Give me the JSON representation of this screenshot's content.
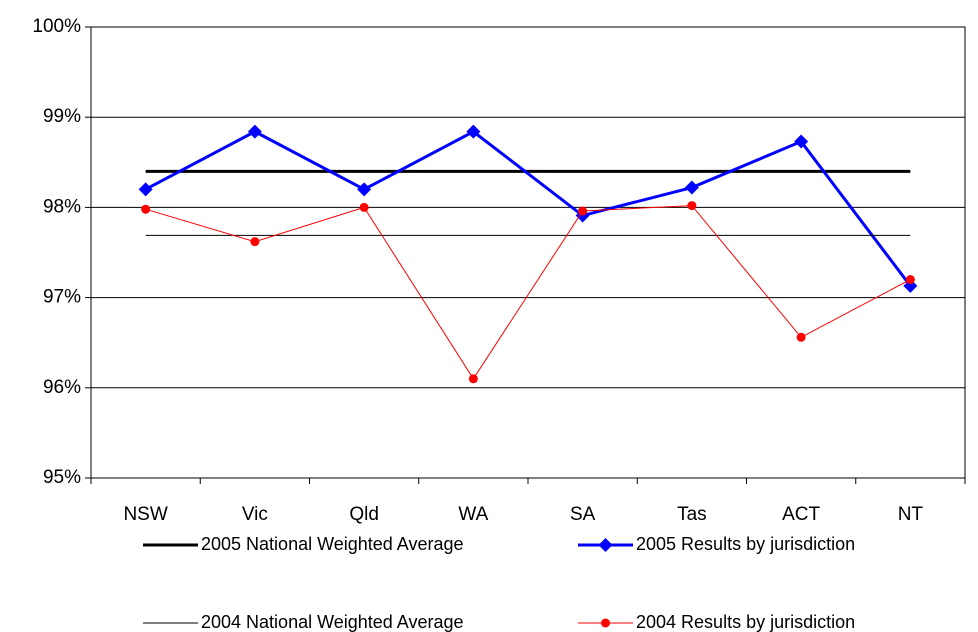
{
  "chart_data": {
    "type": "line",
    "categories": [
      "NSW",
      "Vic",
      "Qld",
      "WA",
      "SA",
      "Tas",
      "ACT",
      "NT"
    ],
    "ylim": [
      95,
      100
    ],
    "yticks": [
      {
        "value": 95,
        "label": "95%"
      },
      {
        "value": 96,
        "label": "96%"
      },
      {
        "value": 97,
        "label": "97%"
      },
      {
        "value": 98,
        "label": "98%"
      },
      {
        "value": 99,
        "label": "99%"
      },
      {
        "value": 100,
        "label": "100%"
      }
    ],
    "grid": true,
    "series": [
      {
        "name": "2005 National Weighted Average",
        "color": "#000000",
        "line_width": 3,
        "marker": null,
        "values": [
          98.4,
          98.4,
          98.4,
          98.4,
          98.4,
          98.4,
          98.4,
          98.4
        ]
      },
      {
        "name": "2005 Results by jurisdiction",
        "color": "#0000ff",
        "line_width": 3,
        "marker": "diamond",
        "values": [
          98.2,
          98.84,
          98.2,
          98.84,
          97.91,
          98.22,
          98.73,
          97.13
        ]
      },
      {
        "name": "2004 National Weighted Average",
        "color": "#000000",
        "line_width": 1,
        "marker": null,
        "values": [
          97.69,
          97.69,
          97.69,
          97.69,
          97.69,
          97.69,
          97.69,
          97.69
        ]
      },
      {
        "name": "2004 Results by jurisdiction",
        "color": "#ff0000",
        "line_width": 1,
        "marker": "circle",
        "values": [
          97.98,
          97.62,
          98.0,
          96.1,
          97.96,
          98.02,
          96.56,
          97.2
        ]
      }
    ]
  }
}
